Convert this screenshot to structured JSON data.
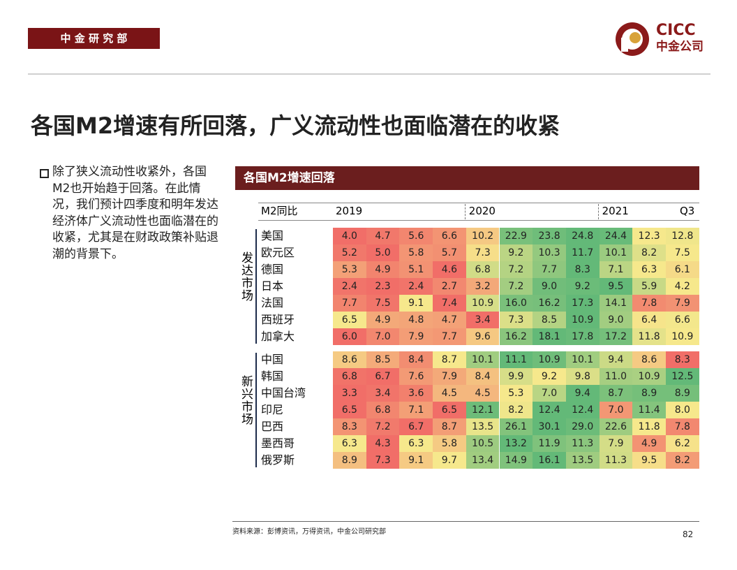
{
  "header": {
    "tag": "中 金 研 究 部",
    "logo_en": "CICC",
    "logo_cn": "中金公司"
  },
  "title": "各国M2增速有所回落，广义流动性也面临潜在的收紧",
  "bullet": "除了狭义流动性收紧外，各国M2也开始趋于回落。在此情况，我们预计四季度和明年发达经济体广义流动性也面临潜在的收紧，尤其是在财政政策补贴退潮的背景下。",
  "table": {
    "title": "各国M2增速回落",
    "corner": "M2同比",
    "periods": [
      "2019",
      "2020",
      "2021",
      "Q3"
    ],
    "groups": [
      {
        "label": "发达市场",
        "rows": [
          {
            "name": "美国",
            "values": [
              "4.0",
              "4.7",
              "5.6",
              "6.6",
              "10.2",
              "22.9",
              "23.8",
              "24.8",
              "24.4",
              "12.3",
              "12.8"
            ]
          },
          {
            "name": "欧元区",
            "values": [
              "5.2",
              "5.0",
              "5.8",
              "5.7",
              "7.3",
              "9.2",
              "10.3",
              "11.7",
              "10.1",
              "8.2",
              "7.5"
            ]
          },
          {
            "name": "德国",
            "values": [
              "5.3",
              "4.9",
              "5.1",
              "4.6",
              "6.8",
              "7.2",
              "7.7",
              "8.3",
              "7.1",
              "6.3",
              "6.1"
            ]
          },
          {
            "name": "日本",
            "values": [
              "2.4",
              "2.3",
              "2.4",
              "2.7",
              "3.2",
              "7.2",
              "9.0",
              "9.2",
              "9.5",
              "5.9",
              "4.2"
            ]
          },
          {
            "name": "法国",
            "values": [
              "7.7",
              "7.5",
              "9.1",
              "7.4",
              "10.9",
              "16.0",
              "16.2",
              "17.3",
              "14.1",
              "7.8",
              "7.9"
            ]
          },
          {
            "name": "西班牙",
            "values": [
              "6.5",
              "4.9",
              "4.8",
              "4.7",
              "3.4",
              "7.3",
              "8.5",
              "10.9",
              "9.0",
              "6.4",
              "6.6"
            ]
          },
          {
            "name": "加拿大",
            "values": [
              "6.0",
              "7.0",
              "7.9",
              "7.7",
              "9.6",
              "16.2",
              "18.1",
              "17.8",
              "17.2",
              "11.8",
              "10.9"
            ]
          }
        ]
      },
      {
        "label": "新兴市场",
        "rows": [
          {
            "name": "中国",
            "values": [
              "8.6",
              "8.5",
              "8.4",
              "8.7",
              "10.1",
              "11.1",
              "10.9",
              "10.1",
              "9.4",
              "8.6",
              "8.3"
            ]
          },
          {
            "name": "韩国",
            "values": [
              "6.8",
              "6.7",
              "7.6",
              "7.9",
              "8.4",
              "9.9",
              "9.2",
              "9.8",
              "11.0",
              "10.9",
              "12.5"
            ]
          },
          {
            "name": "中国台湾",
            "values": [
              "3.3",
              "3.4",
              "3.6",
              "4.5",
              "4.5",
              "5.3",
              "7.0",
              "9.4",
              "8.7",
              "8.9",
              "8.9"
            ]
          },
          {
            "name": "印尼",
            "values": [
              "6.5",
              "6.8",
              "7.1",
              "6.5",
              "12.1",
              "8.2",
              "12.4",
              "12.4",
              "7.0",
              "11.4",
              "8.0"
            ]
          },
          {
            "name": "巴西",
            "values": [
              "8.3",
              "7.2",
              "6.7",
              "8.7",
              "13.5",
              "26.1",
              "30.1",
              "29.0",
              "22.6",
              "11.8",
              "7.8"
            ]
          },
          {
            "name": "墨西哥",
            "values": [
              "6.3",
              "4.3",
              "6.3",
              "5.8",
              "10.5",
              "13.2",
              "11.9",
              "11.3",
              "7.9",
              "4.9",
              "6.2"
            ]
          },
          {
            "name": "俄罗斯",
            "values": [
              "8.9",
              "7.3",
              "9.1",
              "9.7",
              "13.4",
              "14.9",
              "16.1",
              "13.5",
              "11.3",
              "9.5",
              "8.2"
            ]
          }
        ]
      }
    ]
  },
  "footer": {
    "source": "资料来源：彭博资讯，万得资讯，中金公司研究部",
    "page": "82"
  }
}
